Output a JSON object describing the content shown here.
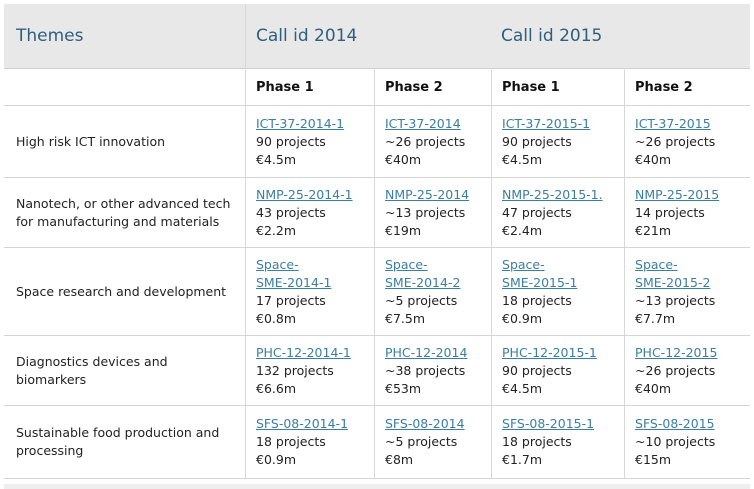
{
  "header": {
    "themes": "Themes",
    "call2014": "Call id 2014",
    "call2015": "Call id 2015"
  },
  "phases": [
    "Phase 1",
    "Phase 2",
    "Phase 1",
    "Phase 2"
  ],
  "rows": [
    {
      "theme": "High risk ICT innovation",
      "cells": [
        {
          "link": "ICT-37-2014-1",
          "projects": "90 projects",
          "budget": "€4.5m"
        },
        {
          "link": "ICT-37-2014",
          "projects": "~26 projects",
          "budget": "€40m"
        },
        {
          "link": "ICT-37-2015-1",
          "projects": "90 projects",
          "budget": "€4.5m"
        },
        {
          "link": "ICT-37-2015",
          "projects": "~26 projects",
          "budget": "€40m"
        }
      ]
    },
    {
      "theme": "Nanotech, or other advanced tech for manufacturing and materials",
      "cells": [
        {
          "link": "NMP-25-2014-1",
          "projects": "43 projects",
          "budget": "€2.2m"
        },
        {
          "link": "NMP-25-2014",
          "projects": "~13 projects",
          "budget": "€19m"
        },
        {
          "link": "NMP-25-2015-1.",
          "projects": "47 projects",
          "budget": "€2.4m"
        },
        {
          "link": "NMP-25-2015",
          "projects": "14 projects",
          "budget": "€21m"
        }
      ]
    },
    {
      "theme": "Space research and development",
      "cells": [
        {
          "link1": "Space-",
          "link2": "SME-2014-1",
          "projects": "17 projects",
          "budget": "€0.8m"
        },
        {
          "link1": "Space-",
          "link2": "SME-2014-2",
          "projects": "~5 projects",
          "budget": "€7.5m"
        },
        {
          "link1": "Space-",
          "link2": "SME-2015-1",
          "projects": "18 projects",
          "budget": "€0.9m"
        },
        {
          "link1": "Space-",
          "link2": "SME-2015-2",
          "projects": "~13 projects",
          "budget": "€7.7m"
        }
      ]
    },
    {
      "theme": "Diagnostics devices and biomarkers",
      "cells": [
        {
          "link": "PHC-12-2014-1",
          "projects": "132 projects",
          "budget": "€6.6m"
        },
        {
          "link": "PHC-12-2014",
          "projects": "~38 projects",
          "budget": "€53m"
        },
        {
          "link": "PHC-12-2015-1",
          "projects": "90 projects",
          "budget": "€4.5m"
        },
        {
          "link": "PHC-12-2015",
          "projects": "~26 projects",
          "budget": "€40m"
        }
      ]
    },
    {
      "theme": "Sustainable food production and processing",
      "cells": [
        {
          "link": "SFS-08-2014-1",
          "projects": "18 projects",
          "budget": "€0.9m"
        },
        {
          "link": "SFS-08-2014",
          "projects": "~5 projects",
          "budget": "€8m"
        },
        {
          "link": "SFS-08-2015-1",
          "projects": "18 projects",
          "budget": "€1.7m"
        },
        {
          "link": "SFS-08-2015",
          "projects": "~10 projects",
          "budget": "€15m"
        }
      ]
    }
  ]
}
